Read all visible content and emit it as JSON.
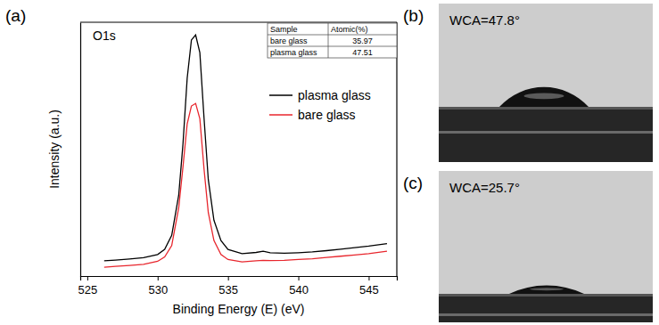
{
  "chart_data": {
    "type": "line",
    "panel_label": "(a)",
    "title": "O1s",
    "x_label": "Binding Energy (E) (eV)",
    "y_label": "Intensity (a.u.)",
    "x": [
      526.2,
      527,
      528,
      529,
      530,
      530.5,
      531,
      531.5,
      531.8,
      532.1,
      532.4,
      532.7,
      533.0,
      533.3,
      533.6,
      534,
      534.5,
      535,
      536,
      537,
      537.5,
      538,
      539,
      540,
      541,
      542,
      543,
      544,
      545,
      546.3
    ],
    "series": [
      {
        "name": "plasma glass",
        "color": "#000000",
        "values": [
          6.0,
          6.3,
          6.7,
          7.2,
          8.5,
          10.5,
          16,
          32,
          52,
          78,
          93,
          95,
          88,
          62,
          38,
          22,
          14,
          10.5,
          8.8,
          9.3,
          9.8,
          9.2,
          9.0,
          9.2,
          9.5,
          10.0,
          10.6,
          11.2,
          11.8,
          12.8
        ]
      },
      {
        "name": "bare glass",
        "color": "#e8262d",
        "values": [
          3.5,
          3.8,
          4.2,
          4.6,
          5.8,
          7.5,
          12,
          27,
          43,
          60,
          67,
          68,
          62,
          42,
          25,
          14,
          8.5,
          6.5,
          5.6,
          6.0,
          6.2,
          6.1,
          6.2,
          6.5,
          6.8,
          7.3,
          7.8,
          8.3,
          8.8,
          9.8
        ]
      }
    ],
    "xlim": [
      524.5,
      547
    ],
    "xticks": [
      525,
      530,
      535,
      540,
      545
    ],
    "ylim": [
      0,
      100
    ],
    "tick_labels": "x",
    "legend": "right",
    "table": {
      "header": [
        "Sample",
        "Atomic(%)"
      ],
      "rows": [
        [
          "bare glass",
          35.97
        ],
        [
          "plasma glass",
          47.51
        ]
      ]
    }
  },
  "photos": [
    {
      "label": "(b)",
      "text": "WCA=47.8°",
      "contact_angle": 47.8
    },
    {
      "label": "(c)",
      "text": "WCA=25.7°",
      "contact_angle": 25.7
    }
  ]
}
